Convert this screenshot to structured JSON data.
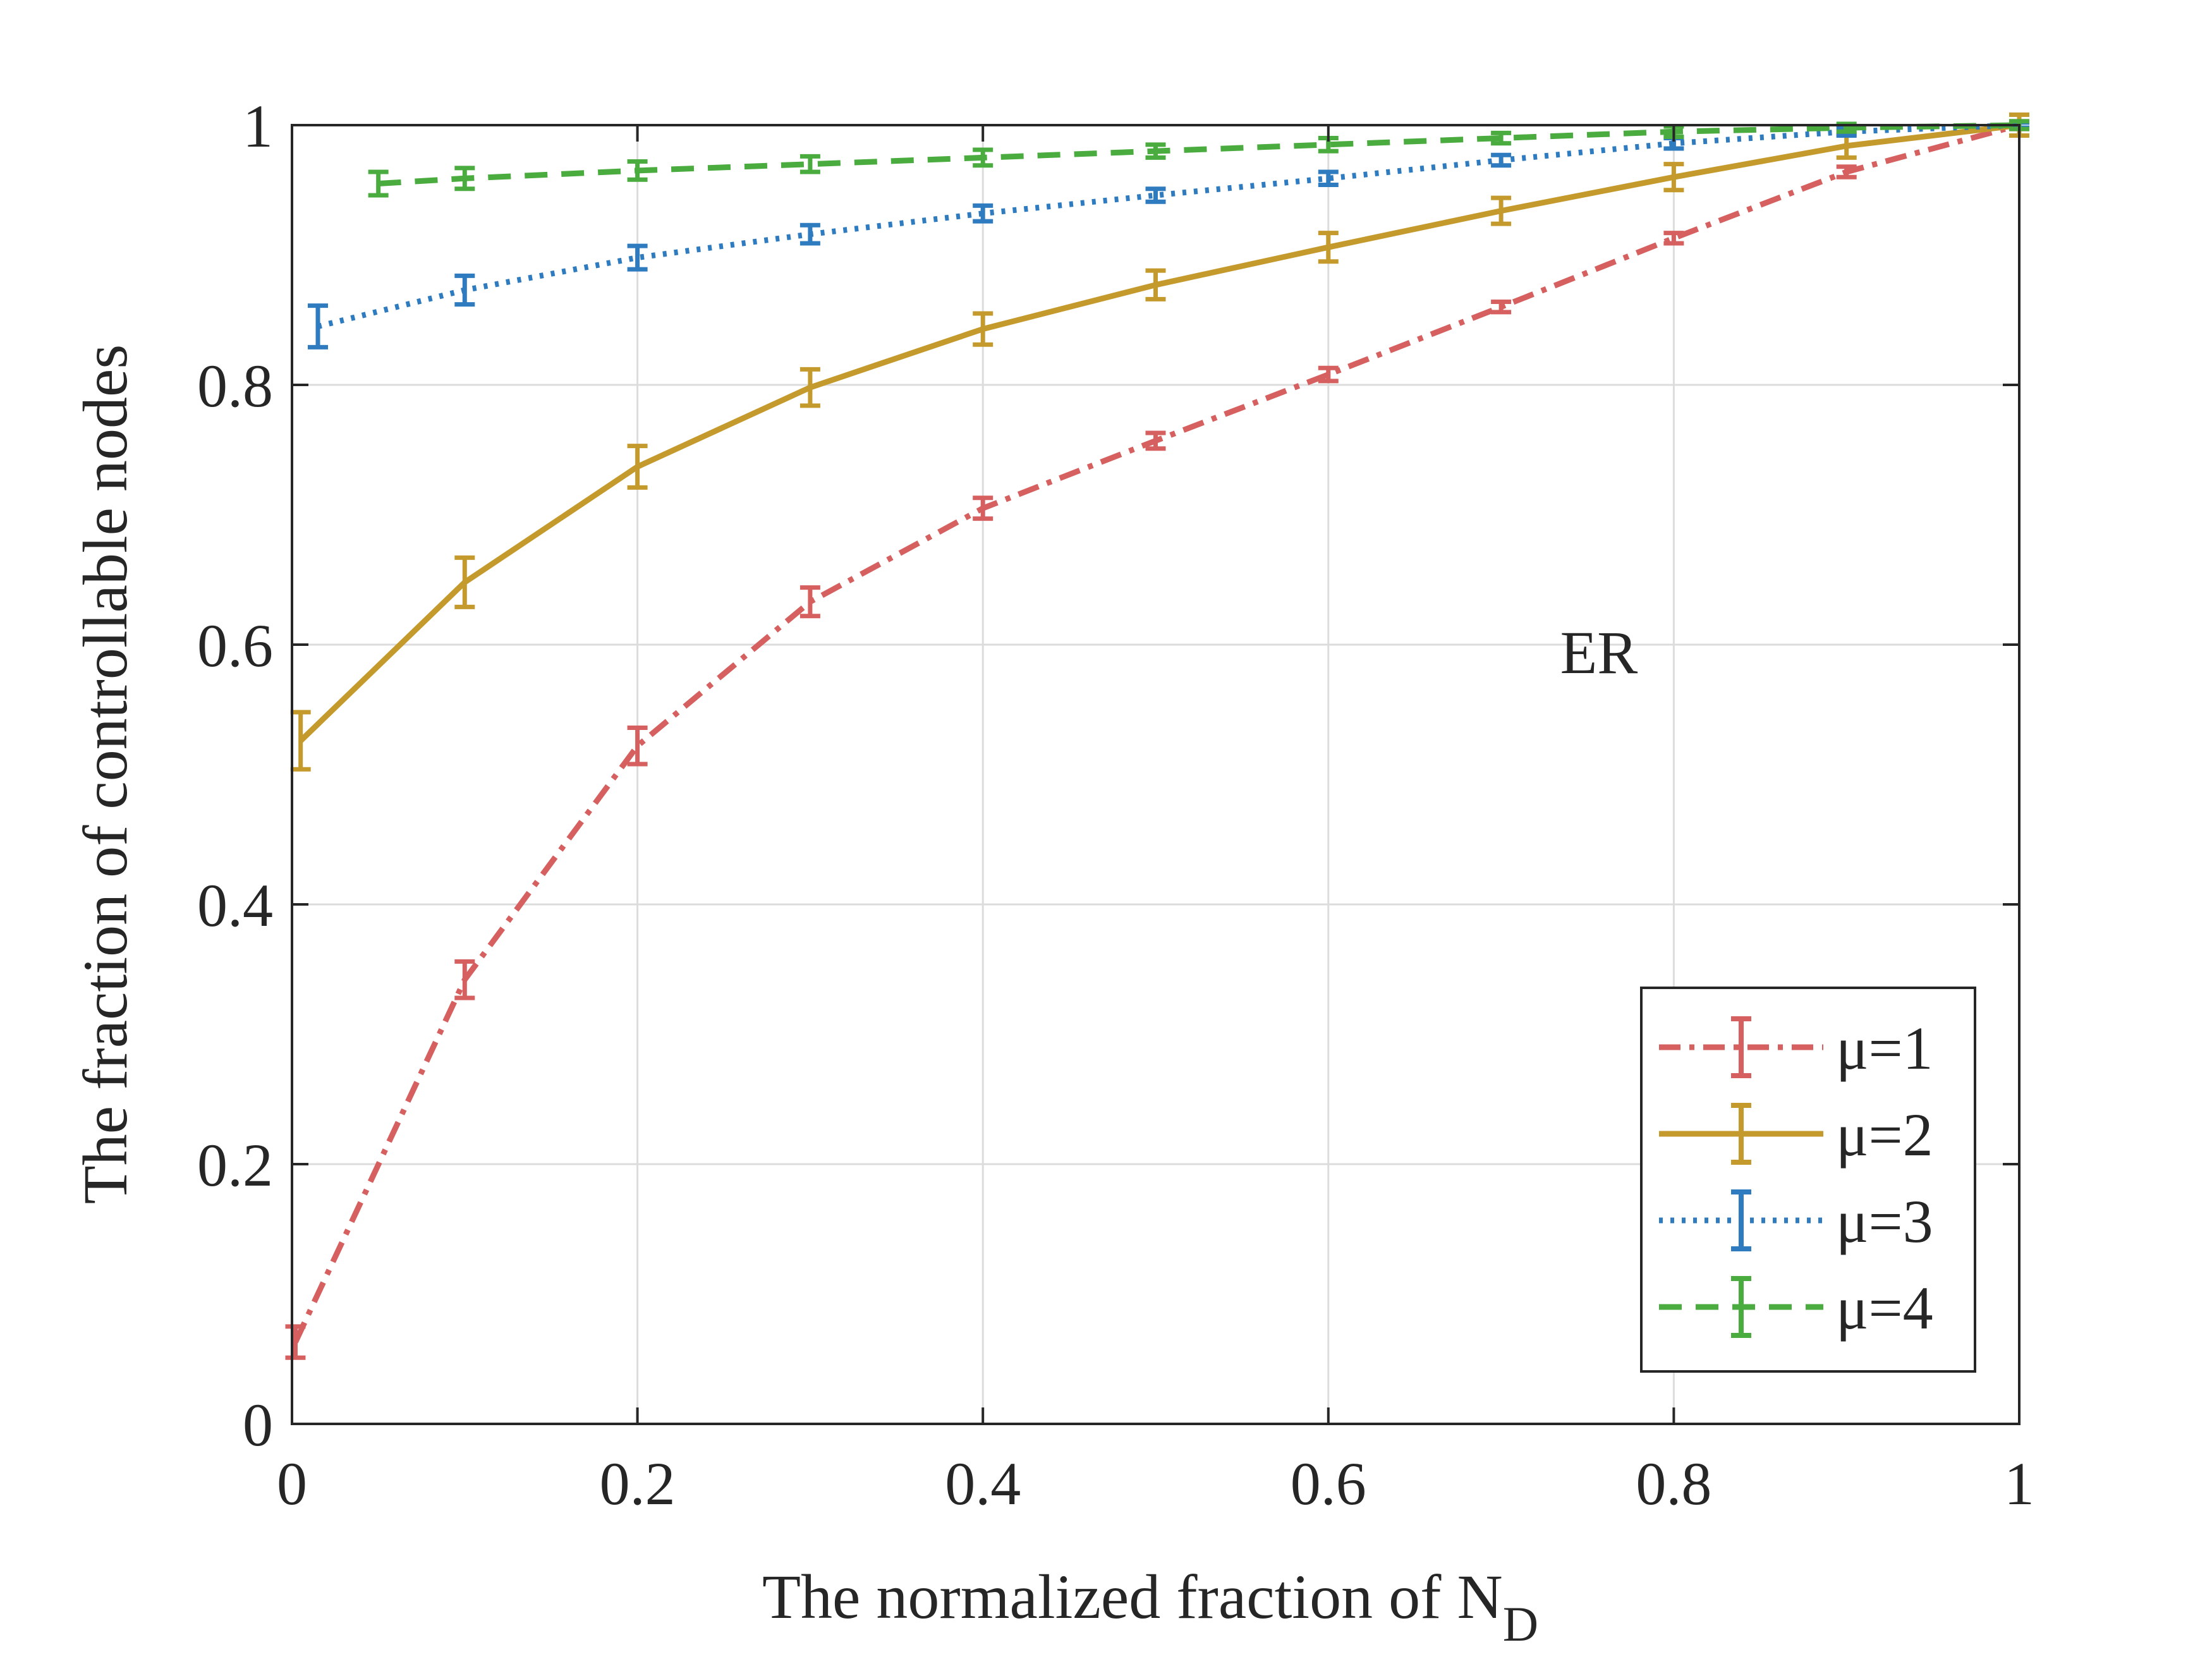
{
  "chart_data": {
    "type": "line",
    "title": "",
    "xlabel": "The normalized fraction of N",
    "xlabel_subscript": "D",
    "ylabel": "The fraction of controllable nodes",
    "xlim": [
      0,
      1
    ],
    "ylim": [
      0,
      1
    ],
    "xticks": [
      0,
      0.2,
      0.4,
      0.6,
      0.8,
      1
    ],
    "xtick_labels": [
      "0",
      "0.2",
      "0.4",
      "0.6",
      "0.8",
      "1"
    ],
    "yticks": [
      0,
      0.2,
      0.4,
      0.6,
      0.8,
      1
    ],
    "ytick_labels": [
      "0",
      "0.2",
      "0.4",
      "0.6",
      "0.8",
      "1"
    ],
    "grid": true,
    "legend_position": "bottom-right",
    "annotation": "ER",
    "series": [
      {
        "name": "μ=1",
        "color": "#d6605f",
        "style": "dashdot",
        "x": [
          0.002,
          0.1,
          0.2,
          0.3,
          0.4,
          0.5,
          0.6,
          0.7,
          0.8,
          0.9,
          1.0
        ],
        "y": [
          0.063,
          0.342,
          0.522,
          0.633,
          0.705,
          0.757,
          0.808,
          0.86,
          0.913,
          0.964,
          1.0
        ],
        "err": [
          0.012,
          0.014,
          0.014,
          0.011,
          0.008,
          0.006,
          0.005,
          0.004,
          0.004,
          0.004,
          0.003
        ]
      },
      {
        "name": "μ=2",
        "color": "#c59a2c",
        "style": "solid",
        "x": [
          0.005,
          0.1,
          0.2,
          0.3,
          0.4,
          0.5,
          0.6,
          0.7,
          0.8,
          0.9,
          1.0
        ],
        "y": [
          0.526,
          0.648,
          0.737,
          0.798,
          0.843,
          0.877,
          0.906,
          0.934,
          0.96,
          0.984,
          1.0
        ],
        "err": [
          0.022,
          0.019,
          0.016,
          0.014,
          0.012,
          0.011,
          0.011,
          0.01,
          0.01,
          0.009,
          0.008
        ]
      },
      {
        "name": "μ=3",
        "color": "#2f7bbf",
        "style": "dotted",
        "x": [
          0.015,
          0.1,
          0.2,
          0.3,
          0.4,
          0.5,
          0.6,
          0.7,
          0.8,
          0.9,
          1.0
        ],
        "y": [
          0.845,
          0.873,
          0.898,
          0.916,
          0.932,
          0.946,
          0.959,
          0.973,
          0.986,
          0.995,
          1.0
        ],
        "err": [
          0.016,
          0.011,
          0.009,
          0.007,
          0.006,
          0.005,
          0.005,
          0.004,
          0.004,
          0.003,
          0.002
        ]
      },
      {
        "name": "μ=4",
        "color": "#4aab3e",
        "style": "dashed",
        "x": [
          0.05,
          0.1,
          0.2,
          0.3,
          0.4,
          0.5,
          0.6,
          0.7,
          0.8,
          0.9,
          1.0
        ],
        "y": [
          0.955,
          0.959,
          0.965,
          0.97,
          0.975,
          0.98,
          0.985,
          0.99,
          0.995,
          0.998,
          1.0
        ],
        "err": [
          0.009,
          0.008,
          0.007,
          0.006,
          0.006,
          0.005,
          0.005,
          0.004,
          0.004,
          0.003,
          0.003
        ]
      }
    ]
  }
}
